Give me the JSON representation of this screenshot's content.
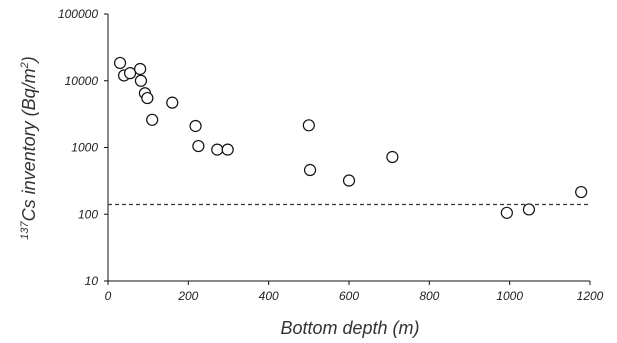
{
  "chart_data": {
    "type": "scatter",
    "title": "",
    "xlabel": "Bottom depth (m)",
    "ylabel": {
      "sup": "137",
      "main": "Cs inventory (Bq/m",
      "unit_sup": "2",
      "close": ")"
    },
    "xlim": [
      0,
      1200
    ],
    "ylim": [
      10,
      100000
    ],
    "yscale": "log",
    "grid": false,
    "legend": "none",
    "x_ticks": [
      "0",
      "200",
      "400",
      "600",
      "800",
      "1000",
      "1200"
    ],
    "y_ticks": [
      "10",
      "100",
      "1000",
      "10000",
      "100000"
    ],
    "reference_line": {
      "y": 140,
      "style": "dashed"
    },
    "points": [
      {
        "x": 30,
        "y": 18500
      },
      {
        "x": 40,
        "y": 12000
      },
      {
        "x": 55,
        "y": 13000
      },
      {
        "x": 80,
        "y": 15000
      },
      {
        "x": 82,
        "y": 10000
      },
      {
        "x": 92,
        "y": 6500
      },
      {
        "x": 98,
        "y": 5500
      },
      {
        "x": 110,
        "y": 2600
      },
      {
        "x": 160,
        "y": 4700
      },
      {
        "x": 218,
        "y": 2100
      },
      {
        "x": 225,
        "y": 1050
      },
      {
        "x": 272,
        "y": 930
      },
      {
        "x": 298,
        "y": 930
      },
      {
        "x": 500,
        "y": 2150
      },
      {
        "x": 503,
        "y": 460
      },
      {
        "x": 600,
        "y": 320
      },
      {
        "x": 708,
        "y": 720
      },
      {
        "x": 993,
        "y": 105
      },
      {
        "x": 1048,
        "y": 118
      },
      {
        "x": 1178,
        "y": 215
      }
    ]
  }
}
